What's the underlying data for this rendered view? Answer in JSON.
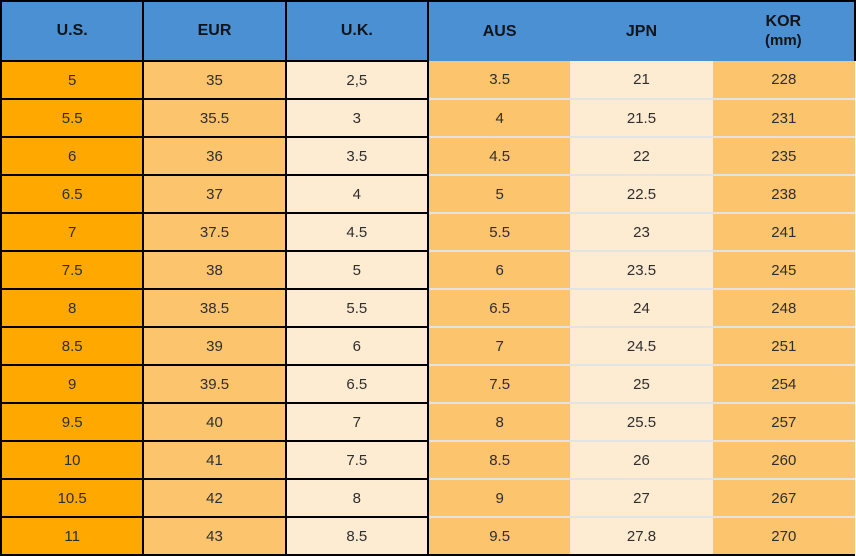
{
  "chart_data": {
    "type": "table",
    "columns": [
      {
        "key": "us",
        "label": "U.S."
      },
      {
        "key": "eur",
        "label": "EUR"
      },
      {
        "key": "uk",
        "label": "U.K."
      },
      {
        "key": "aus",
        "label": "AUS"
      },
      {
        "key": "jpn",
        "label": "JPN"
      },
      {
        "key": "kor",
        "label": "KOR",
        "sublabel": "(mm)"
      }
    ],
    "rows": [
      [
        "5",
        "35",
        "2,5",
        "3.5",
        "21",
        "228"
      ],
      [
        "5.5",
        "35.5",
        "3",
        "4",
        "21.5",
        "231"
      ],
      [
        "6",
        "36",
        "3.5",
        "4.5",
        "22",
        "235"
      ],
      [
        "6.5",
        "37",
        "4",
        "5",
        "22.5",
        "238"
      ],
      [
        "7",
        "37.5",
        "4.5",
        "5.5",
        "23",
        "241"
      ],
      [
        "7.5",
        "38",
        "5",
        "6",
        "23.5",
        "245"
      ],
      [
        "8",
        "38.5",
        "5.5",
        "6.5",
        "24",
        "248"
      ],
      [
        "8.5",
        "39",
        "6",
        "7",
        "24.5",
        "251"
      ],
      [
        "9",
        "39.5",
        "6.5",
        "7.5",
        "25",
        "254"
      ],
      [
        "9.5",
        "40",
        "7",
        "8",
        "25.5",
        "257"
      ],
      [
        "10",
        "41",
        "7.5",
        "8.5",
        "26",
        "260"
      ],
      [
        "10.5",
        "42",
        "8",
        "9",
        "27",
        "267"
      ],
      [
        "11",
        "43",
        "8.5",
        "9.5",
        "27.8",
        "270"
      ]
    ],
    "layout": {
      "grid": "left-half-black-borders, right-half-light-row-dividers",
      "legend": "none",
      "title": ""
    }
  },
  "colors": {
    "header_bg": "#4A90D2",
    "us_column_bg": "#FFA800",
    "medium_orange_bg": "#FCC46D",
    "cream_bg": "#FDEBD2",
    "grid_black": "#000000",
    "row_divider": "#E3E3E3"
  }
}
